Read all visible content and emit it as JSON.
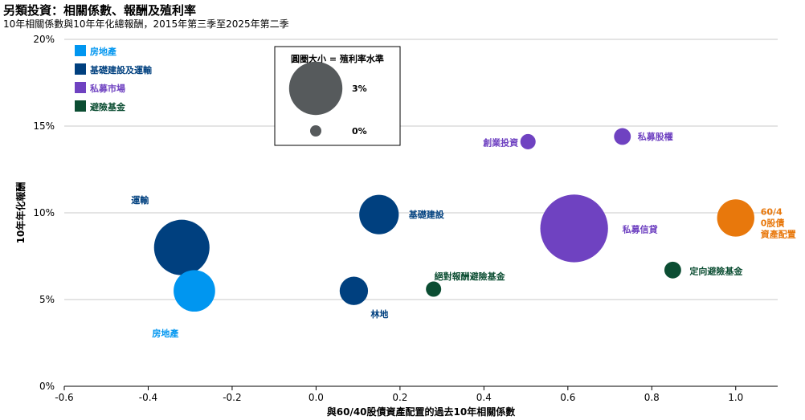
{
  "chart_data": {
    "type": "scatter",
    "title": "另類投資：相關係數、報酬及殖利率",
    "subtitle": "10年相關係數與10年年化總報酬，2015年第三季至2025年第二季",
    "xlabel": "與60/40股債資產配置的過去10年相關係數",
    "ylabel": "10年年化報酬",
    "xlim": [
      -0.6,
      1.1
    ],
    "ylim": [
      0,
      20
    ],
    "x_ticks": [
      "-0.6",
      "-0.4",
      "-0.2",
      "0.0",
      "0.2",
      "0.4",
      "0.6",
      "0.8",
      "1.0"
    ],
    "y_ticks": [
      "0%",
      "5%",
      "10%",
      "15%",
      "20%"
    ],
    "grid": "horizontal",
    "legend": {
      "placement": "top-left",
      "entries": [
        {
          "name": "房地產",
          "color": "#0096f0"
        },
        {
          "name": "基礎建設及運輸",
          "color": "#00407f"
        },
        {
          "name": "私募市場",
          "color": "#6f42c1"
        },
        {
          "name": "避險基金",
          "color": "#0b4d32"
        }
      ]
    },
    "size_legend": {
      "title": "圓圈大小 = 殖利率水準",
      "items": [
        {
          "label": "3%",
          "yield": 3
        },
        {
          "label": "0%",
          "yield": 0
        }
      ]
    },
    "points": [
      {
        "label": "運輸",
        "x": -0.32,
        "y": 8.0,
        "yield": 3.3,
        "color": "#00407f"
      },
      {
        "label": "房地產",
        "x": -0.29,
        "y": 5.5,
        "yield": 1.6,
        "color": "#0096f0"
      },
      {
        "label": "林地",
        "x": 0.09,
        "y": 5.5,
        "yield": 0.55,
        "color": "#00407f"
      },
      {
        "label": "基礎建設",
        "x": 0.15,
        "y": 9.9,
        "yield": 1.4,
        "color": "#00407f"
      },
      {
        "label": "絕對報酬避險基金",
        "x": 0.28,
        "y": 5.6,
        "yield": 0.05,
        "color": "#0b4d32"
      },
      {
        "label": "創業投資",
        "x": 0.505,
        "y": 14.1,
        "yield": 0.05,
        "color": "#6f42c1"
      },
      {
        "label": "私募股權",
        "x": 0.73,
        "y": 14.4,
        "yield": 0.08,
        "color": "#6f42c1"
      },
      {
        "label": "私募信貸",
        "x": 0.615,
        "y": 9.1,
        "yield": 5.3,
        "color": "#6f42c1"
      },
      {
        "label": "定向避險基金",
        "x": 0.85,
        "y": 6.7,
        "yield": 0.08,
        "color": "#0b4d32"
      },
      {
        "label": "60/40股債資產配置",
        "x": 1.0,
        "y": 9.7,
        "yield": 1.2,
        "color": "#e8780c"
      }
    ]
  }
}
